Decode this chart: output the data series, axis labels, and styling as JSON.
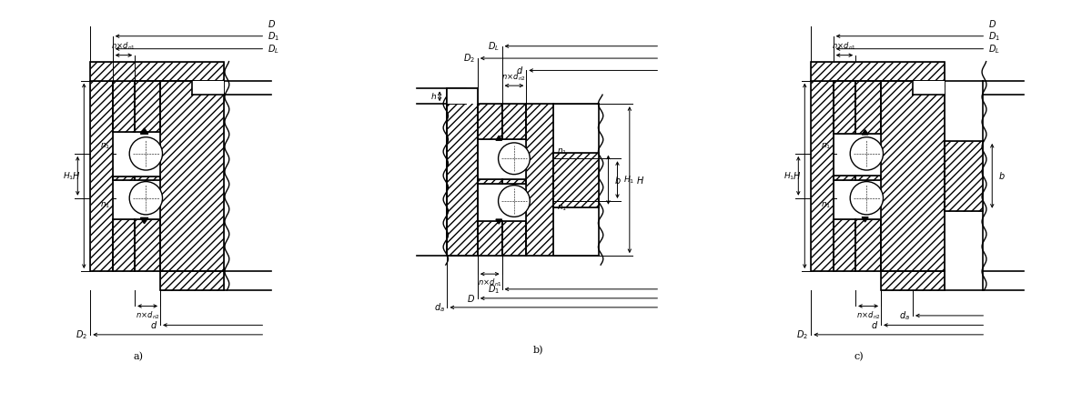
{
  "bg_color": "#ffffff",
  "fig_width": 12.0,
  "fig_height": 4.32,
  "panels": [
    "a)",
    "b)",
    "c)"
  ]
}
